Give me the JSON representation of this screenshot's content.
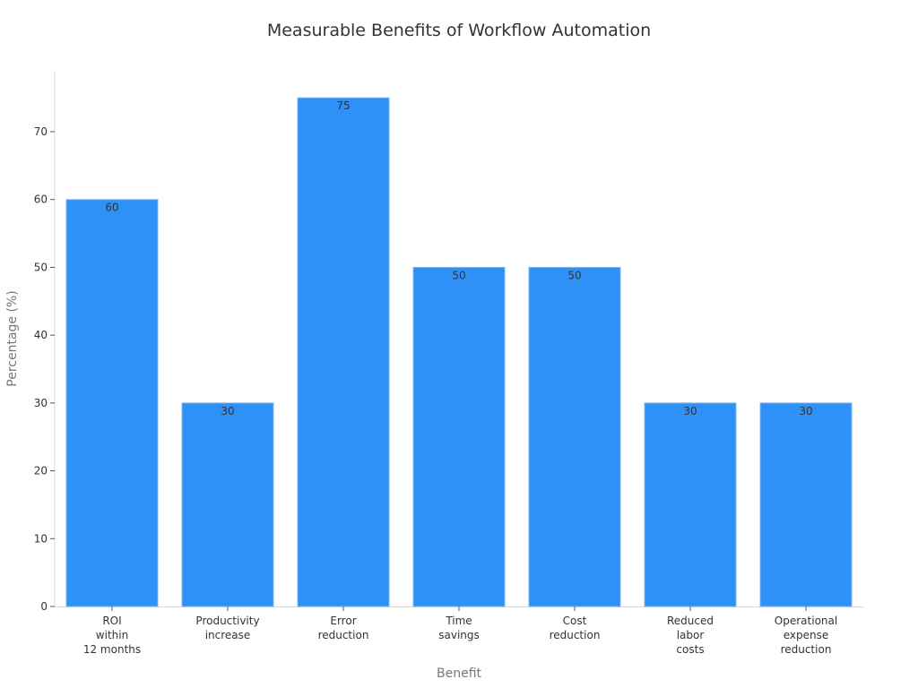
{
  "chart_data": {
    "type": "bar",
    "title": "Measurable Benefits of Workflow Automation",
    "xlabel": "Benefit",
    "ylabel": "Percentage (%)",
    "categories": [
      [
        "ROI",
        "within",
        "12 months"
      ],
      [
        "Productivity",
        "increase"
      ],
      [
        "Error",
        "reduction"
      ],
      [
        "Time",
        "savings"
      ],
      [
        "Cost",
        "reduction"
      ],
      [
        "Reduced",
        "labor",
        "costs"
      ],
      [
        "Operational",
        "expense",
        "reduction"
      ]
    ],
    "values": [
      60,
      30,
      75,
      50,
      50,
      30,
      30
    ],
    "yticks": [
      0,
      10,
      20,
      30,
      40,
      50,
      60,
      70
    ],
    "ylim": [
      0,
      79
    ],
    "grid": false,
    "legend": null,
    "bar_color": "#2f91f7",
    "bar_edge_color": "#7fb8f5"
  }
}
